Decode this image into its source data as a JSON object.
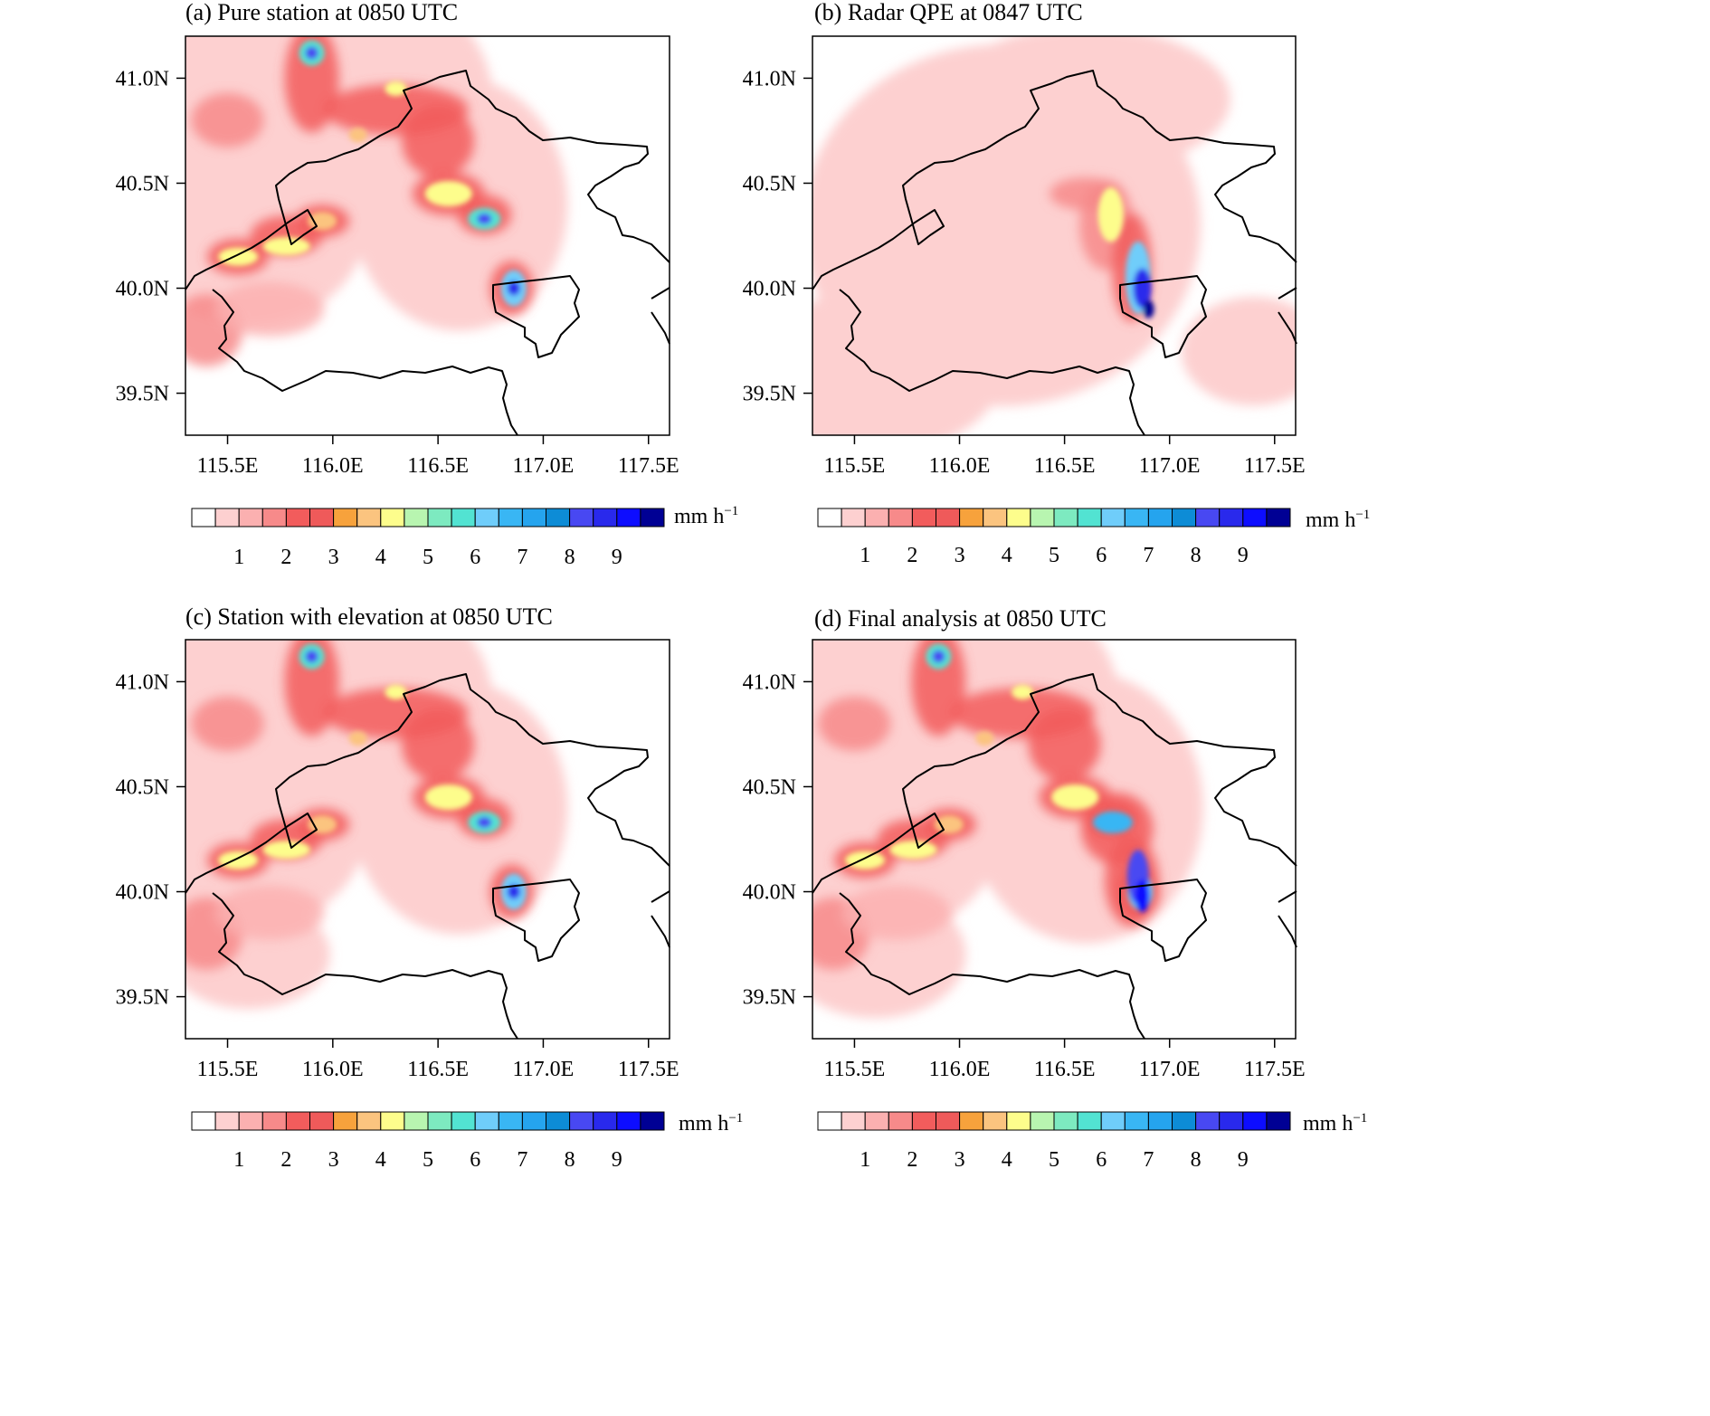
{
  "panels": [
    {
      "id": "a",
      "title": "(a) Pure station at 0850 UTC"
    },
    {
      "id": "b",
      "title": "(b) Radar QPE at 0847 UTC"
    },
    {
      "id": "c",
      "title": "(c) Station with elevation at 0850 UTC"
    },
    {
      "id": "d",
      "title": "(d) Final analysis at 0850 UTC"
    }
  ],
  "axes": {
    "x_ticks": [
      "115.5E",
      "116.0E",
      "116.5E",
      "117.0E",
      "117.5E"
    ],
    "x_values": [
      115.5,
      116.0,
      116.5,
      117.0,
      117.5
    ],
    "y_ticks": [
      "41.0N",
      "40.5N",
      "40.0N",
      "39.5N"
    ],
    "y_values": [
      41.0,
      40.5,
      40.0,
      39.5
    ]
  },
  "colorbar": {
    "unit_text": "mm h",
    "unit_exp": "−1",
    "tick_labels": [
      "1",
      "2",
      "3",
      "4",
      "5",
      "6",
      "7",
      "8",
      "9"
    ],
    "colors": [
      "#ffffff",
      "#fdd0d0",
      "#fbb0b0",
      "#f78a8a",
      "#f25c5c",
      "#ef5a5a",
      "#f7a23c",
      "#fbc47f",
      "#fdfd8c",
      "#b8f5b0",
      "#7deac0",
      "#52e3d2",
      "#6fcdfa",
      "#39b6f4",
      "#25a4ee",
      "#0d8cd6",
      "#4848f2",
      "#2929ec",
      "#0d0dff",
      "#000094"
    ]
  }
}
